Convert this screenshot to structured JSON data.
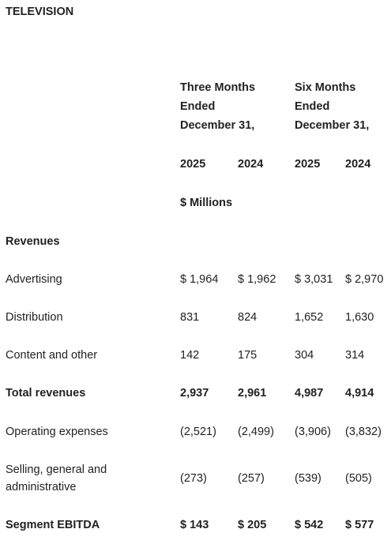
{
  "title": "TELEVISION",
  "header": {
    "periods": [
      "Three Months Ended December 31,",
      "Six Months Ended December 31,"
    ],
    "years": [
      "2025",
      "2024",
      "2025",
      "2024"
    ],
    "unit": "$ Millions"
  },
  "rows": [
    {
      "label": "Revenues",
      "bold": true,
      "cells": []
    },
    {
      "label": "Advertising",
      "bold": false,
      "cells": [
        "$ 1,964",
        "$ 1,962",
        "$ 3,031",
        "$ 2,970"
      ]
    },
    {
      "label": "Distribution",
      "bold": false,
      "cells": [
        "831",
        "824",
        "1,652",
        "1,630"
      ]
    },
    {
      "label": "Content and other",
      "bold": false,
      "cells": [
        "142",
        "175",
        "304",
        "314"
      ]
    },
    {
      "label": "Total revenues",
      "bold": true,
      "cells": [
        "2,937",
        "2,961",
        "4,987",
        "4,914"
      ]
    },
    {
      "label": "Operating expenses",
      "bold": false,
      "cells": [
        "(2,521)",
        "(2,499)",
        "(3,906)",
        "(3,832)"
      ]
    },
    {
      "label": "Selling, general and administrative",
      "bold": false,
      "cells": [
        "(273)",
        "(257)",
        "(539)",
        "(505)"
      ]
    },
    {
      "label": "Segment EBITDA",
      "bold": true,
      "cells": [
        "$ 143",
        "$ 205",
        "$ 542",
        "$ 577"
      ]
    }
  ]
}
